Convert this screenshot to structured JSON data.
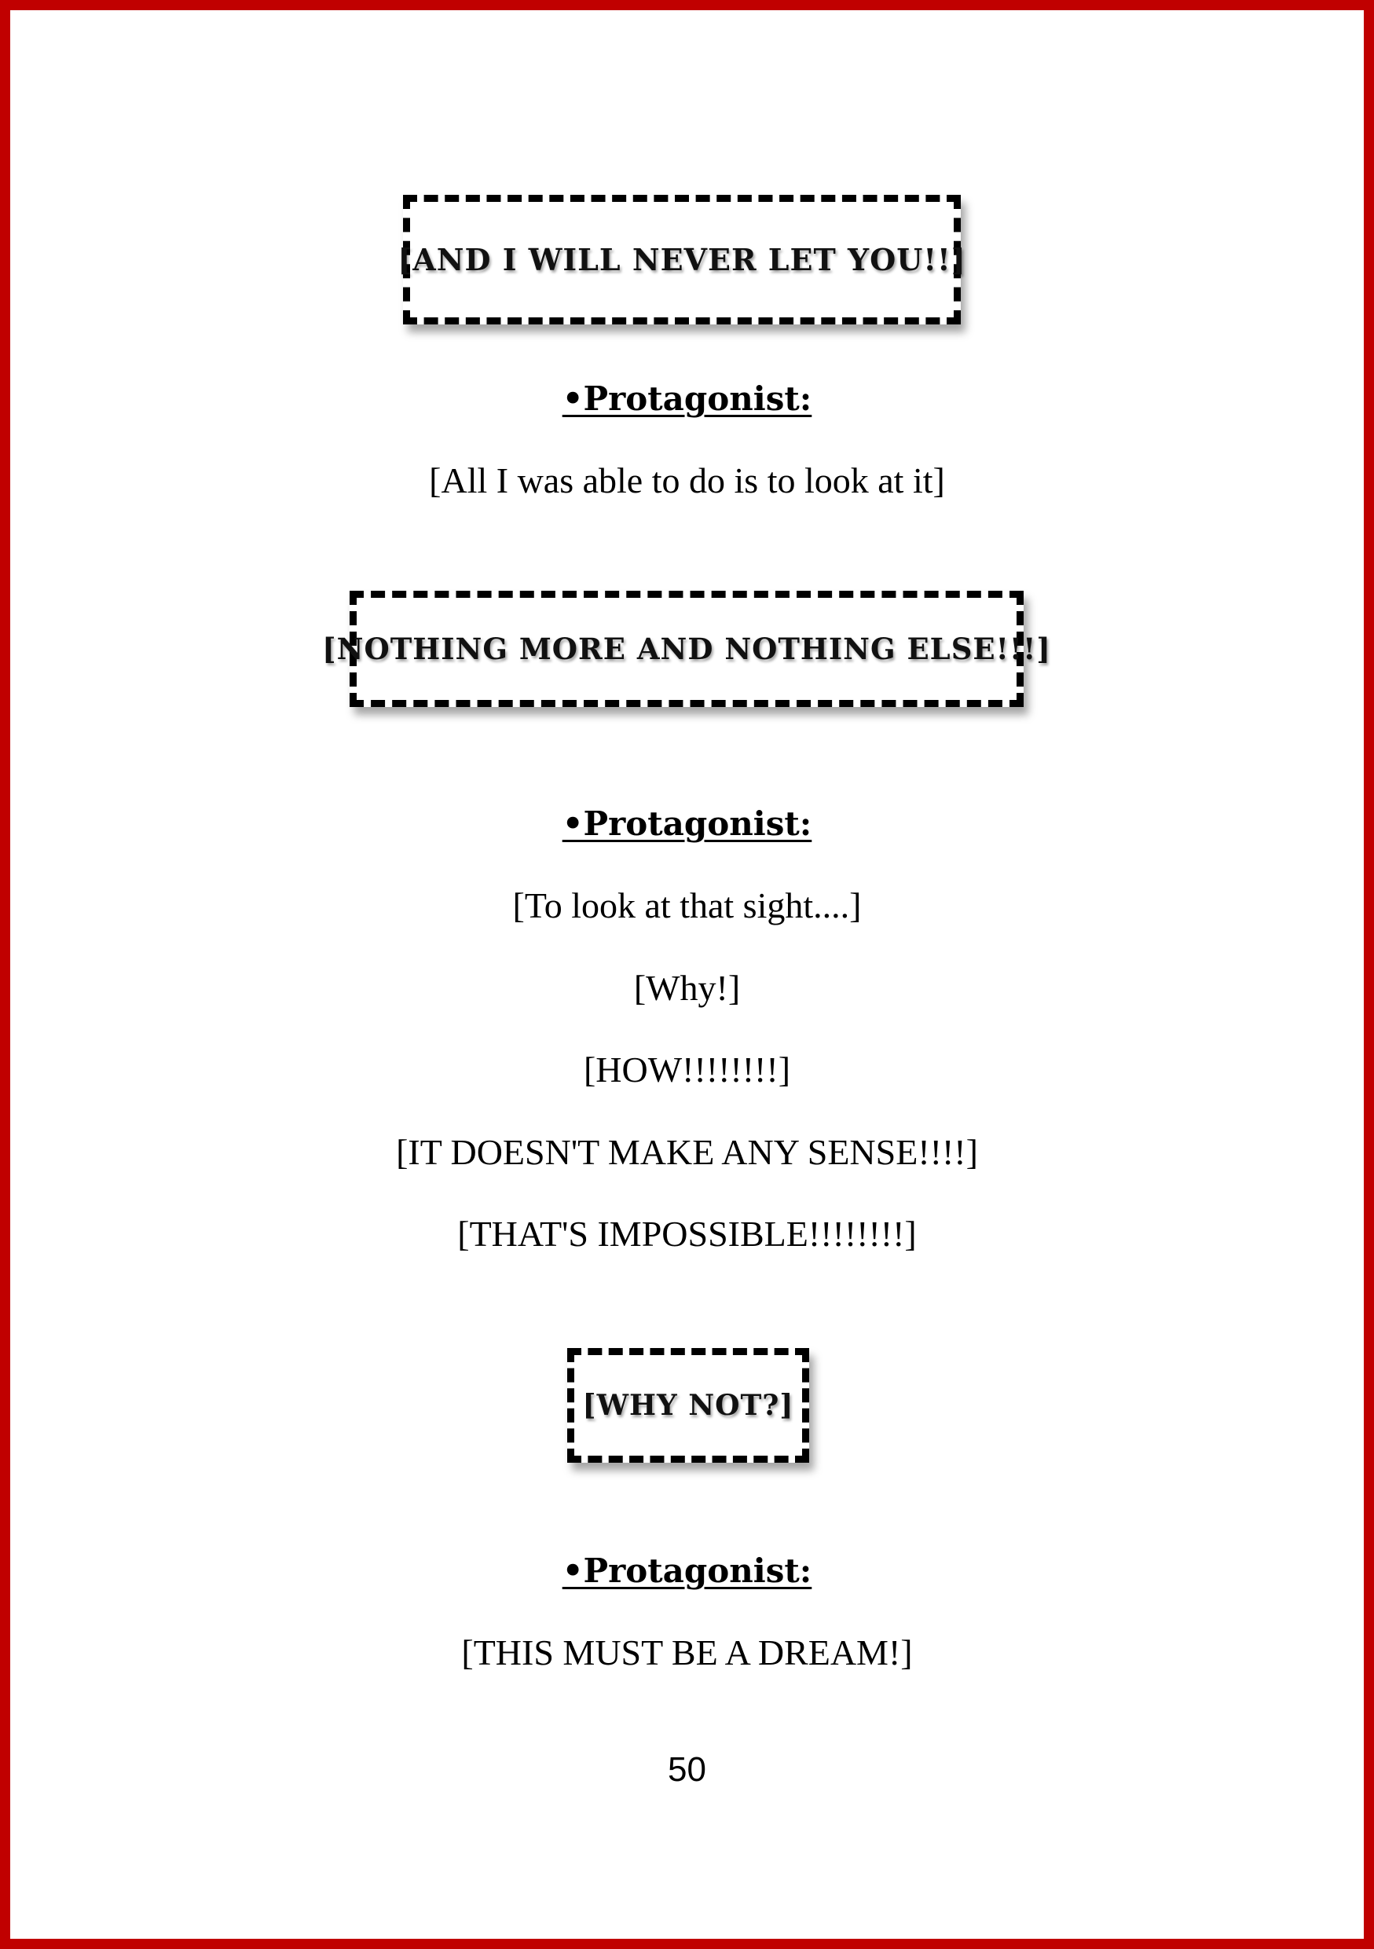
{
  "boxes": [
    {
      "text": "[AND I WILL NEVER LET YOU!!]"
    },
    {
      "text": "[NOTHING MORE AND NOTHING ELSE!!!]"
    },
    {
      "text": "[WHY NOT?]"
    }
  ],
  "speaker_label": "•Protagonist:",
  "lines": {
    "l1": "[All I was able to do is to look at it]",
    "l2": "[To look at that sight....]",
    "l3": "[Why!]",
    "l4": "[HOW!!!!!!!!]",
    "l5": "[IT DOESN'T MAKE ANY SENSE!!!!]",
    "l6": "[THAT'S IMPOSSIBLE!!!!!!!!]",
    "l7": "[THIS MUST BE A DREAM!]"
  },
  "page_number": "50",
  "colors": {
    "border": "#c00000",
    "text": "#000000"
  }
}
